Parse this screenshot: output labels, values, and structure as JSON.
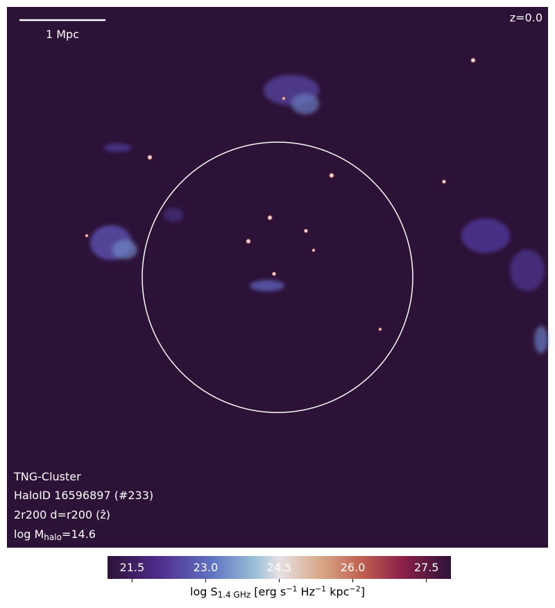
{
  "scale_bar": {
    "label": "1 Mpc"
  },
  "redshift": "z=0.0",
  "info": {
    "simulation": "TNG-Cluster",
    "halo": "HaloID 16596897 (#233)",
    "projection": "2r200 d=r200 (ẑ)",
    "mass_prefix": "log M",
    "mass_sub": "halo",
    "mass_value": "=14.6"
  },
  "colorbar": {
    "range": [
      21,
      28
    ],
    "ticks": [
      21.5,
      {
        "value": 23.0,
        "label": "23.0"
      },
      24.5,
      {
        "value": 26.0,
        "label": "26.0"
      },
      27.5
    ],
    "label": {
      "prefix": "log S",
      "sub": "1.4 GHz",
      "unit1": " [erg s",
      "exp1": "−1",
      "unit2": " Hz",
      "exp2": "−1",
      "unit3": " kpc",
      "exp3": "−2",
      "close": "]"
    }
  }
}
